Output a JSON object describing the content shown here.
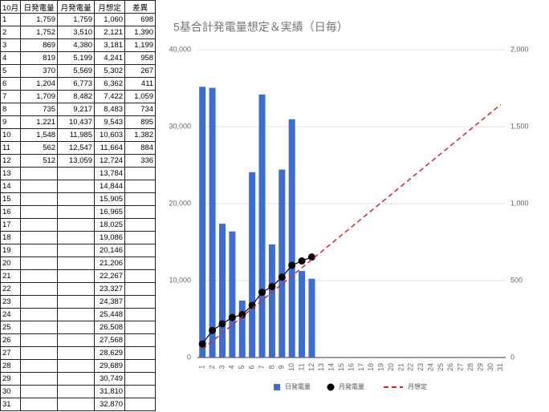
{
  "table": {
    "header": [
      "10月",
      "日発電量",
      "月発電量",
      "月想定",
      "差異"
    ],
    "rows": [
      [
        "1",
        "1,759",
        "1,759",
        "1,060",
        "698"
      ],
      [
        "2",
        "1,752",
        "3,510",
        "2,121",
        "1,390"
      ],
      [
        "3",
        "869",
        "4,380",
        "3,181",
        "1,199"
      ],
      [
        "4",
        "819",
        "5,199",
        "4,241",
        "958"
      ],
      [
        "5",
        "370",
        "5,569",
        "5,302",
        "267"
      ],
      [
        "6",
        "1,204",
        "6,773",
        "6,362",
        "411"
      ],
      [
        "7",
        "1,709",
        "8,482",
        "7,422",
        "1,059"
      ],
      [
        "8",
        "735",
        "9,217",
        "8,483",
        "734"
      ],
      [
        "9",
        "1,221",
        "10,437",
        "9,543",
        "895"
      ],
      [
        "10",
        "1,548",
        "11,985",
        "10,603",
        "1,382"
      ],
      [
        "11",
        "562",
        "12,547",
        "11,664",
        "884"
      ],
      [
        "12",
        "512",
        "13,059",
        "12,724",
        "336"
      ],
      [
        "13",
        null,
        null,
        "13,784",
        null
      ],
      [
        "14",
        null,
        null,
        "14,844",
        null
      ],
      [
        "15",
        null,
        null,
        "15,905",
        null
      ],
      [
        "16",
        null,
        null,
        "16,965",
        null
      ],
      [
        "17",
        null,
        null,
        "18,025",
        null
      ],
      [
        "18",
        null,
        null,
        "19,086",
        null
      ],
      [
        "19",
        null,
        null,
        "20,146",
        null
      ],
      [
        "20",
        null,
        null,
        "21,206",
        null
      ],
      [
        "21",
        null,
        null,
        "22,267",
        null
      ],
      [
        "22",
        null,
        null,
        "23,327",
        null
      ],
      [
        "23",
        null,
        null,
        "24,387",
        null
      ],
      [
        "24",
        null,
        null,
        "25,448",
        null
      ],
      [
        "25",
        null,
        null,
        "26,508",
        null
      ],
      [
        "26",
        null,
        null,
        "27,568",
        null
      ],
      [
        "27",
        null,
        null,
        "28,629",
        null
      ],
      [
        "28",
        null,
        null,
        "29,689",
        null
      ],
      [
        "29",
        null,
        null,
        "30,749",
        null
      ],
      [
        "30",
        null,
        null,
        "31,810",
        null
      ],
      [
        "31",
        null,
        null,
        "32,870",
        null
      ]
    ]
  },
  "chart_data": {
    "type": "combo",
    "title": "5基合計発電量想定＆実績（日毎）",
    "categories": [
      1,
      2,
      3,
      4,
      5,
      6,
      7,
      8,
      9,
      10,
      11,
      12,
      13,
      14,
      15,
      16,
      17,
      18,
      19,
      20,
      21,
      22,
      23,
      24,
      25,
      26,
      27,
      28,
      29,
      30,
      31
    ],
    "series": [
      {
        "name": "日発電量",
        "type": "bar",
        "axis": "y2",
        "color": "#3c6dd6",
        "values": [
          1759,
          1752,
          869,
          819,
          370,
          1204,
          1709,
          735,
          1221,
          1548,
          562,
          512,
          null,
          null,
          null,
          null,
          null,
          null,
          null,
          null,
          null,
          null,
          null,
          null,
          null,
          null,
          null,
          null,
          null,
          null,
          null
        ]
      },
      {
        "name": "月発電量",
        "type": "line",
        "color": "#000000",
        "values": [
          1759,
          3510,
          4380,
          5199,
          5569,
          6773,
          8482,
          9217,
          10437,
          11985,
          12547,
          13059,
          null,
          null,
          null,
          null,
          null,
          null,
          null,
          null,
          null,
          null,
          null,
          null,
          null,
          null,
          null,
          null,
          null,
          null,
          null
        ]
      },
      {
        "name": "月想定",
        "type": "dashed",
        "color": "#e02424",
        "values": [
          1060,
          2121,
          3181,
          4241,
          5302,
          6362,
          7422,
          8483,
          9543,
          10603,
          11664,
          12724,
          13784,
          14844,
          15905,
          16965,
          18025,
          19086,
          20146,
          21206,
          22267,
          23327,
          24387,
          25448,
          26508,
          27568,
          28629,
          29689,
          30749,
          31810,
          32870
        ]
      }
    ],
    "ylim": [
      0,
      40000
    ],
    "yticks": [
      0,
      {
        "value": 10000,
        "label": "10,000"
      },
      {
        "value": 20000,
        "label": "20,000"
      },
      {
        "value": 30000,
        "label": "30,000"
      },
      {
        "value": 40000,
        "label": "40,000"
      }
    ],
    "y2lim": [
      0,
      2000
    ],
    "y2ticks": [
      0,
      500,
      {
        "value": 1000,
        "label": "1,000"
      },
      {
        "value": 1500,
        "label": "1,500"
      },
      {
        "value": 2000,
        "label": "2,000"
      }
    ],
    "grid": true,
    "legend": "bottom"
  }
}
